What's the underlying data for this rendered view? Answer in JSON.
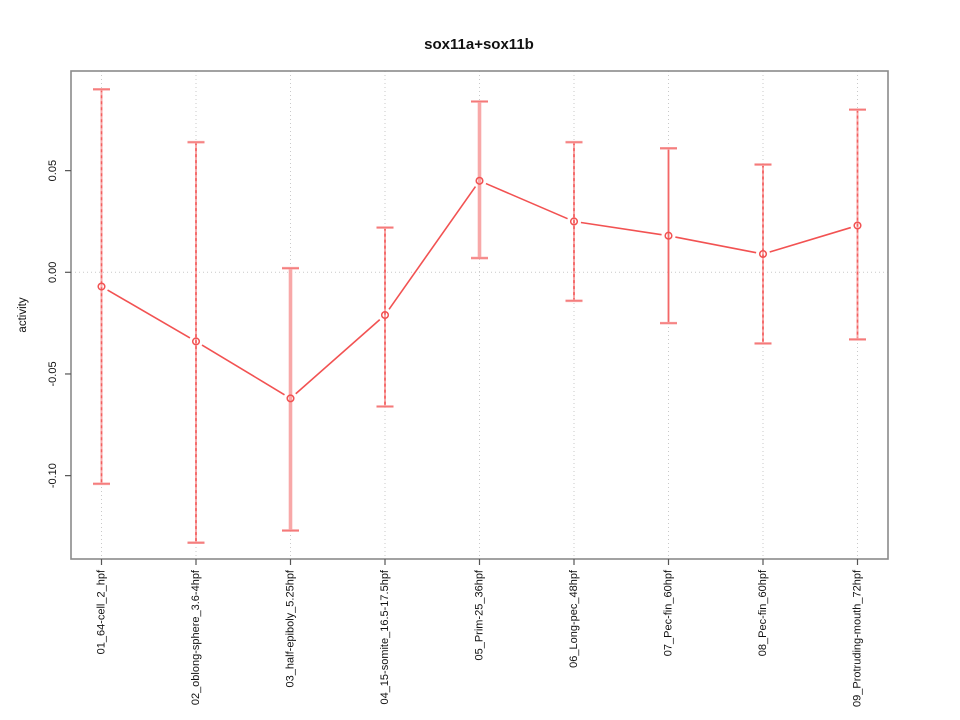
{
  "window": {
    "background": "#ffffff"
  },
  "chart_data": {
    "type": "line",
    "title": "sox11a+sox11b",
    "xlabel": "",
    "ylabel": "activity",
    "categories": [
      "01_64-cell_2_hpf",
      "02_oblong-sphere_3.6-4hpf",
      "03_half-epiboly_5.25hpf",
      "04_15-somite_16.5-17.5hpf",
      "05_Prim-25_36hpf",
      "06_Long-pec_48hpf",
      "07_Pec-fin_60hpf",
      "08_Pec-fin_60hpf",
      "09_Protruding-mouth_72hpf"
    ],
    "series": [
      {
        "name": "sox11a+sox11b",
        "color": "#f25252",
        "marker": "open-circle",
        "values": [
          -0.007,
          -0.034,
          -0.062,
          -0.021,
          0.045,
          0.025,
          0.018,
          0.009,
          0.023
        ],
        "error_high": [
          0.09,
          0.064,
          0.002,
          0.022,
          0.084,
          0.064,
          0.061,
          0.053,
          0.08
        ],
        "error_low": [
          -0.104,
          -0.133,
          -0.127,
          -0.066,
          0.007,
          -0.014,
          -0.025,
          -0.035,
          -0.033
        ]
      }
    ],
    "error_bar_color": "#f8a8a8",
    "error_bar_styles": [
      "dashed",
      "dashed",
      "thick",
      "dashed",
      "thick",
      "dashed",
      "solid",
      "dashed",
      "dashed"
    ],
    "yticks": {
      "values": [
        0.05,
        0.0,
        -0.05,
        -0.1
      ],
      "labels": [
        "0.05",
        "0.00",
        "-0.05",
        "-0.10"
      ]
    },
    "ylim": [
      -0.141,
      0.099
    ],
    "grid": {
      "vertical": "dotted-per-category",
      "zero_line": true,
      "color": "#c9c9c9"
    },
    "legend_position": "none",
    "frame_color": "#8b8b8b",
    "tick_color": "#555555"
  }
}
